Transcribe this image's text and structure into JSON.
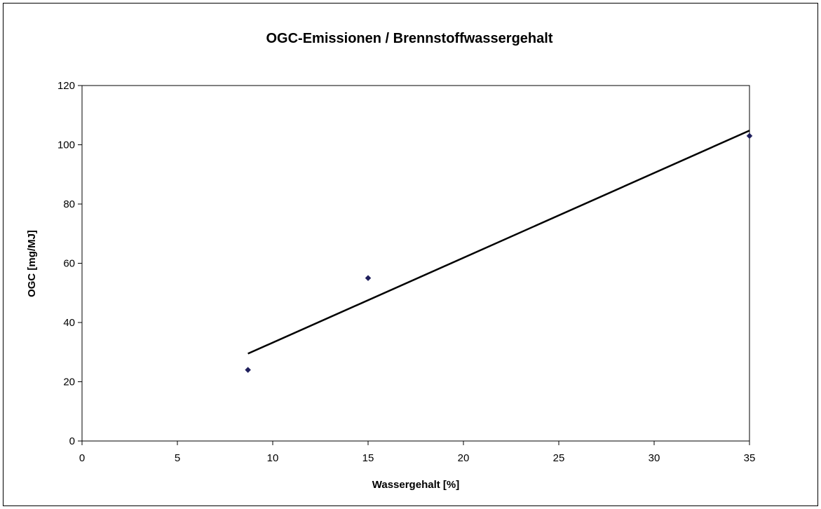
{
  "chart_data": {
    "type": "scatter",
    "title": "OGC-Emissionen / Brennstoffwassergehalt",
    "xlabel": "Wassergehalt [%]",
    "ylabel": "OGC [mg/MJ]",
    "xlim": [
      0,
      35
    ],
    "ylim": [
      0,
      120
    ],
    "xticks": [
      0,
      5,
      10,
      15,
      20,
      25,
      30,
      35
    ],
    "yticks": [
      0,
      20,
      40,
      60,
      80,
      100,
      120
    ],
    "grid": false,
    "legend": "none",
    "series": [
      {
        "points": [
          {
            "x": 8.7,
            "y": 24
          },
          {
            "x": 15,
            "y": 55
          },
          {
            "x": 35,
            "y": 103
          }
        ],
        "marker": "diamond",
        "color": "#1f1f5c"
      }
    ],
    "trendline": {
      "type": "linear",
      "x": [
        8.7,
        35
      ],
      "y": [
        29.5,
        104.8
      ],
      "color": "#000000"
    }
  }
}
